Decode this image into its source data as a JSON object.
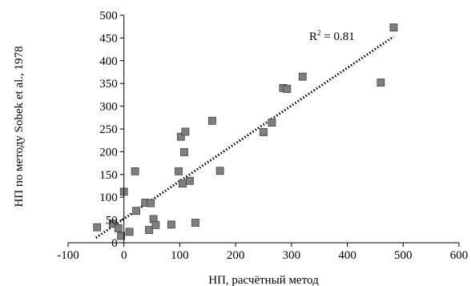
{
  "chart_data": {
    "type": "scatter",
    "xlabel": "НП, расчётный метод",
    "ylabel": "НП по методу Sobek et al., 1978",
    "xlim": [
      -100,
      600
    ],
    "ylim": [
      0,
      500
    ],
    "xticks": [
      -100,
      0,
      100,
      200,
      300,
      400,
      500,
      600
    ],
    "yticks": [
      0,
      50,
      100,
      150,
      200,
      250,
      300,
      350,
      400,
      450,
      500
    ],
    "xtick_labels": [
      "-100",
      "0",
      "100",
      "200",
      "300",
      "400",
      "500",
      "600"
    ],
    "ytick_labels": [
      "0",
      "50",
      "100",
      "150",
      "200",
      "250",
      "300",
      "350",
      "400",
      "450",
      "500"
    ],
    "grid": false,
    "marker": "square",
    "marker_color": "#7f7f7f",
    "trendline": {
      "style": "dotted",
      "color": "#000000",
      "x": [
        -50,
        483
      ],
      "y": [
        11,
        453
      ]
    },
    "annotation": {
      "r2_base": "R",
      "r2_exp": "2",
      "r2_text": " = 0.81"
    },
    "points": [
      {
        "x": -48,
        "y": 34
      },
      {
        "x": -20,
        "y": 42
      },
      {
        "x": -10,
        "y": 32
      },
      {
        "x": -5,
        "y": 15
      },
      {
        "x": 0,
        "y": 112
      },
      {
        "x": 10,
        "y": 24
      },
      {
        "x": 20,
        "y": 157
      },
      {
        "x": 22,
        "y": 70
      },
      {
        "x": 38,
        "y": 88
      },
      {
        "x": 45,
        "y": 28
      },
      {
        "x": 48,
        "y": 87
      },
      {
        "x": 53,
        "y": 52
      },
      {
        "x": 57,
        "y": 39
      },
      {
        "x": 85,
        "y": 40
      },
      {
        "x": 98,
        "y": 157
      },
      {
        "x": 102,
        "y": 233
      },
      {
        "x": 105,
        "y": 130
      },
      {
        "x": 108,
        "y": 199
      },
      {
        "x": 110,
        "y": 244
      },
      {
        "x": 118,
        "y": 136
      },
      {
        "x": 128,
        "y": 44
      },
      {
        "x": 158,
        "y": 268
      },
      {
        "x": 172,
        "y": 158
      },
      {
        "x": 250,
        "y": 243
      },
      {
        "x": 265,
        "y": 264
      },
      {
        "x": 285,
        "y": 340
      },
      {
        "x": 292,
        "y": 338
      },
      {
        "x": 320,
        "y": 365
      },
      {
        "x": 460,
        "y": 352
      },
      {
        "x": 483,
        "y": 473
      }
    ]
  }
}
